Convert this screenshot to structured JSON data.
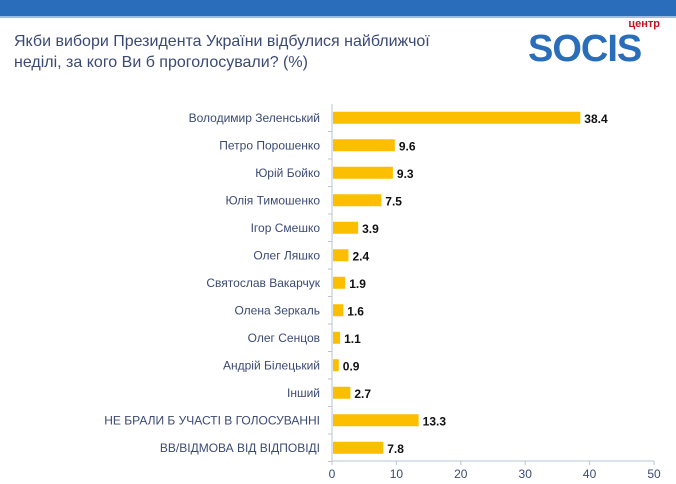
{
  "header": {
    "title_line1": "Якби вибори Президента України відбулися найближчої",
    "title_line2": "неділі, за кого Ви б проголосували? (%)"
  },
  "logo": {
    "small": "центр",
    "word": "SOCIS"
  },
  "colors": {
    "bar": "#fcbf00",
    "topbar": "#2a6ebb",
    "label": "#3b4a74"
  },
  "chart_data": {
    "type": "bar",
    "orientation": "horizontal",
    "title": "Якби вибори Президента України відбулися найближчої неділі, за кого Ви б проголосували? (%)",
    "categories": [
      "Володимир Зеленський",
      "Петро Порошенко",
      "Юрій Бойко",
      "Юлія Тимошенко",
      "Ігор Смешко",
      "Олег Ляшко",
      "Святослав Вакарчук",
      "Олена Зеркаль",
      "Олег Сенцов",
      "Андрій Білецький",
      "Інший",
      "НЕ БРАЛИ Б УЧАСТІ В ГОЛОСУВАННІ",
      "ВВ/ВІДМОВА ВІД ВІДПОВІДІ"
    ],
    "values": [
      38.4,
      9.6,
      9.3,
      7.5,
      3.9,
      2.4,
      1.9,
      1.6,
      1.1,
      0.9,
      2.7,
      13.3,
      7.8
    ],
    "labels": [
      "38.4",
      "9.6",
      "9.3",
      "7.5",
      "3.9",
      "2.4",
      "1.9",
      "1.6",
      "1.1",
      "0.9",
      "2.7",
      "13.3",
      "7.8"
    ],
    "xlim": [
      0,
      50
    ],
    "xticks": [
      "0",
      "10",
      "20",
      "30",
      "40",
      "50"
    ],
    "grid": false,
    "legend": "none"
  }
}
